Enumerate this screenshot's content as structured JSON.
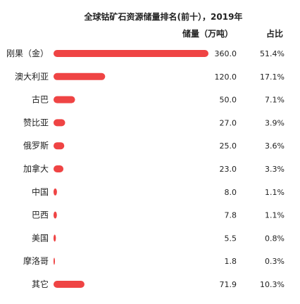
{
  "chart_data": {
    "type": "bar",
    "title": "全球钴矿石资源储量排名(前十），2019年",
    "columns": {
      "value_header": "储量（万吨）",
      "share_header": "占比"
    },
    "categories": [
      "刚果（金）",
      "澳大利亚",
      "古巴",
      "赞比亚",
      "俄罗斯",
      "加拿大",
      "中国",
      "巴西",
      "美国",
      "摩洛哥",
      "其它"
    ],
    "values": [
      360.0,
      120.0,
      50.0,
      27.0,
      25.0,
      23.0,
      8.0,
      7.8,
      5.5,
      1.8,
      71.9
    ],
    "value_labels": [
      "360.0",
      "120.0",
      "50.0",
      "27.0",
      "25.0",
      "23.0",
      "8.0",
      "7.8",
      "5.5",
      "1.8",
      "71.9"
    ],
    "shares": [
      "51.4%",
      "17.1%",
      "7.1%",
      "3.9%",
      "3.6%",
      "3.3%",
      "1.1%",
      "1.1%",
      "0.8%",
      "0.3%",
      "10.3%"
    ],
    "bar_color": "#ef4444",
    "xlim": [
      0,
      360
    ],
    "grid": false,
    "legend": "none"
  }
}
